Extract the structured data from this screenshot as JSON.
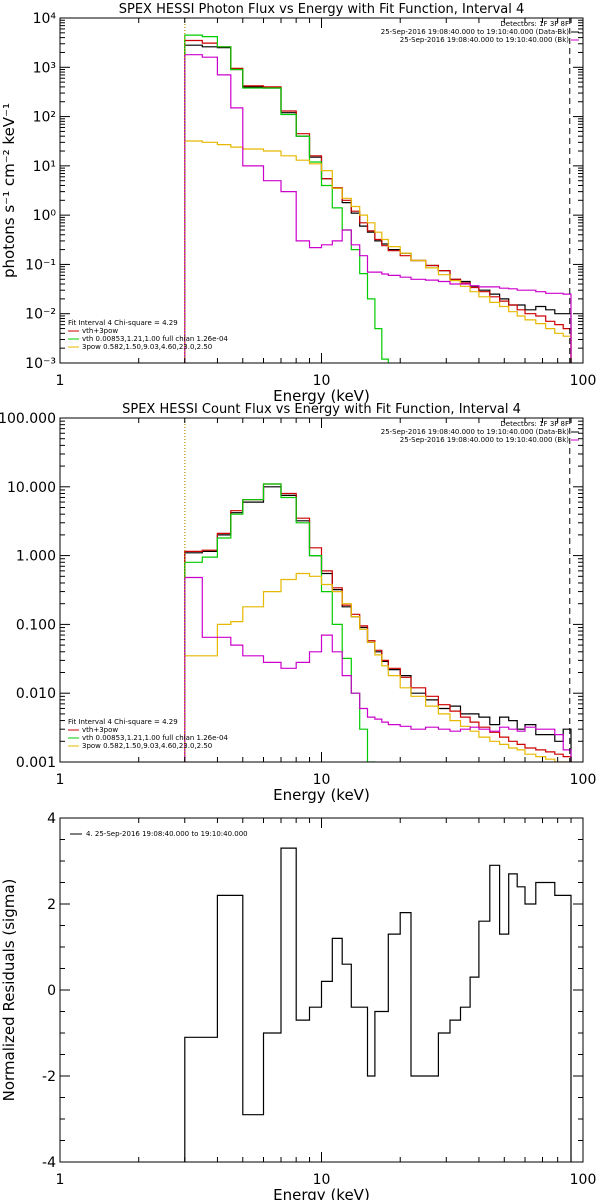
{
  "colors": {
    "data": "#000000",
    "total": "#cc0000",
    "thermal": "#00cc00",
    "nonthermal": "#e6b800",
    "background": "#cc00cc",
    "black": "#000000"
  },
  "chart_data": [
    {
      "id": "photon",
      "type": "line",
      "title": "SPEX HESSI Photon Flux vs Energy with Fit Function, Interval 4",
      "xlabel": "Energy (keV)",
      "ylabel": "photons s⁻¹ cm⁻² keV⁻¹",
      "xscale": "log",
      "yscale": "log",
      "xlim": [
        1,
        100
      ],
      "ylim": [
        0.001,
        10000
      ],
      "xticks": [
        {
          "v": 1,
          "label": "1"
        },
        {
          "v": 10,
          "label": "10"
        },
        {
          "v": 100,
          "label": "100"
        }
      ],
      "yticks": [
        {
          "v": 0.001,
          "label": "10⁻³"
        },
        {
          "v": 0.01,
          "label": "10⁻²"
        },
        {
          "v": 0.1,
          "label": "10⁻¹"
        },
        {
          "v": 1,
          "label": "10⁰"
        },
        {
          "v": 10,
          "label": "10¹"
        },
        {
          "v": 100,
          "label": "10²"
        },
        {
          "v": 1000,
          "label": "10³"
        },
        {
          "v": 10000,
          "label": "10⁴"
        }
      ],
      "vlines": [
        {
          "x": 3,
          "style": "dotted",
          "color": "#000000"
        },
        {
          "x": 3,
          "style": "dotted",
          "color": "#e6b800"
        },
        {
          "x": 89,
          "style": "dashed",
          "color": "#000000"
        }
      ],
      "legend_topright": [
        "Detectors: 1F 3F 8F",
        "25-Sep-2016 19:08:40.000 to 19:10:40.000 (Data-Bk)",
        "25-Sep-2016 19:08:40.000 to 19:10:40.000 (Bk)"
      ],
      "legend_bottomleft": [
        "Fit Interval 4   Chi-square = 4.29",
        "vth+3pow",
        "vth 0.00853,1.21,1.00  full chian 1.26e-04",
        "3pow 0.582,1.50,9.03,4.60,23.0,2.50"
      ],
      "series": [
        {
          "name": "Data-Bk",
          "color": "#000000",
          "edges": [
            3,
            3.5,
            4,
            4.5,
            5,
            6,
            7,
            8,
            9,
            10,
            11,
            12,
            13,
            14,
            15,
            16,
            17,
            18,
            20,
            22,
            25,
            28,
            31,
            34,
            37,
            40,
            44,
            48,
            52,
            56,
            60,
            66,
            72,
            78,
            84,
            90
          ],
          "values": [
            2800,
            2600,
            2500,
            900,
            400,
            380,
            120,
            40,
            15,
            5.5,
            3.5,
            1.8,
            1.1,
            0.6,
            0.45,
            0.3,
            0.26,
            0.2,
            0.17,
            0.12,
            0.095,
            0.075,
            0.05,
            0.045,
            0.035,
            0.03,
            0.025,
            0.02,
            0.015,
            0.015,
            0.012,
            0.014,
            0.012,
            0.01,
            0.01
          ]
        },
        {
          "name": "vth+3pow",
          "color": "#cc0000",
          "edges": [
            3,
            3.5,
            4,
            4.5,
            5,
            6,
            7,
            8,
            9,
            10,
            11,
            12,
            13,
            14,
            15,
            16,
            17,
            18,
            20,
            22,
            25,
            28,
            31,
            34,
            37,
            40,
            44,
            48,
            52,
            56,
            60,
            66,
            72,
            78,
            84,
            90
          ],
          "values": [
            3500,
            3100,
            2600,
            950,
            420,
            400,
            130,
            45,
            16,
            5.5,
            3.6,
            2.0,
            1.2,
            0.7,
            0.48,
            0.32,
            0.24,
            0.19,
            0.15,
            0.12,
            0.095,
            0.075,
            0.05,
            0.042,
            0.034,
            0.028,
            0.022,
            0.018,
            0.015,
            0.012,
            0.01,
            0.009,
            0.007,
            0.006,
            0.005
          ]
        },
        {
          "name": "vth",
          "color": "#00cc00",
          "edges": [
            3,
            3.5,
            4,
            4.5,
            5,
            6,
            7,
            8,
            9,
            10,
            11,
            12,
            13,
            14,
            15,
            16,
            17,
            18
          ],
          "values": [
            4500,
            4200,
            2600,
            900,
            380,
            380,
            110,
            40,
            12,
            4,
            1.4,
            0.5,
            0.2,
            0.065,
            0.02,
            0.005,
            0.0012
          ]
        },
        {
          "name": "3pow",
          "color": "#e6b800",
          "edges": [
            3,
            3.5,
            4,
            4.5,
            5,
            6,
            7,
            8,
            9,
            10,
            11,
            12,
            13,
            14,
            15,
            16,
            17,
            18,
            20,
            22,
            25,
            28,
            31,
            34,
            37,
            40,
            44,
            48,
            52,
            56,
            60,
            66,
            72,
            78,
            84,
            90
          ],
          "values": [
            32,
            30,
            27,
            24,
            22,
            20,
            16,
            13,
            11,
            8,
            3.5,
            2.2,
            1.5,
            1.0,
            0.7,
            0.45,
            0.32,
            0.23,
            0.17,
            0.12,
            0.085,
            0.062,
            0.047,
            0.036,
            0.028,
            0.022,
            0.017,
            0.014,
            0.011,
            0.009,
            0.0075,
            0.0063,
            0.005,
            0.004,
            0.0035
          ]
        },
        {
          "name": "Bk",
          "color": "#cc00cc",
          "edges": [
            3,
            3.5,
            4,
            4.5,
            5,
            6,
            7,
            8,
            9,
            10,
            11,
            12,
            13,
            14,
            15,
            16,
            17,
            18,
            20,
            22,
            25,
            28,
            31,
            34,
            37,
            40,
            44,
            48,
            52,
            56,
            60,
            66,
            72,
            78,
            84,
            90
          ],
          "values": [
            1800,
            1600,
            700,
            150,
            10,
            5.0,
            3,
            0.3,
            0.22,
            0.25,
            0.3,
            0.5,
            0.25,
            0.15,
            0.07,
            0.07,
            0.064,
            0.06,
            0.055,
            0.05,
            0.048,
            0.045,
            0.04,
            0.04,
            0.037,
            0.035,
            0.035,
            0.033,
            0.032,
            0.03,
            0.03,
            0.028,
            0.026,
            0.026,
            0.025
          ]
        }
      ]
    },
    {
      "id": "count",
      "type": "line",
      "title": "SPEX HESSI Count Flux vs Energy with Fit Function, Interval 4",
      "xlabel": "Energy (keV)",
      "ylabel": "",
      "xscale": "log",
      "yscale": "log",
      "xlim": [
        1,
        100
      ],
      "ylim": [
        0.001,
        100
      ],
      "xticks": [
        {
          "v": 1,
          "label": "1"
        },
        {
          "v": 10,
          "label": "10"
        },
        {
          "v": 100,
          "label": "100"
        }
      ],
      "yticks": [
        {
          "v": 0.001,
          "label": "0.001"
        },
        {
          "v": 0.01,
          "label": "0.010"
        },
        {
          "v": 0.1,
          "label": "0.100"
        },
        {
          "v": 1,
          "label": "1.000"
        },
        {
          "v": 10,
          "label": "10.000"
        },
        {
          "v": 100,
          "label": "100.000"
        }
      ],
      "vlines": [
        {
          "x": 3,
          "style": "dotted",
          "color": "#000000"
        },
        {
          "x": 3,
          "style": "dotted",
          "color": "#e6b800"
        },
        {
          "x": 89,
          "style": "dashed",
          "color": "#000000"
        }
      ],
      "legend_topright": [
        "Detectors: 1F 3F 8F",
        "25-Sep-2016 19:08:40.000 to 19:10:40.000 (Data-Bk)",
        "25-Sep-2016 19:08:40.000 to 19:10:40.000 (Bk)"
      ],
      "legend_bottomleft": [
        "Fit Interval 4   Chi-square = 4.29",
        "vth+3pow",
        "vth 0.00853,1.21,1.00  full chian 1.26e-04",
        "3pow 0.582,1.50,9.03,4.60,23.0,2.50"
      ],
      "series": [
        {
          "name": "Data-Bk",
          "color": "#000000",
          "edges": [
            3,
            3.5,
            4,
            4.5,
            5,
            6,
            7,
            8,
            9,
            10,
            11,
            12,
            13,
            14,
            15,
            16,
            17,
            18,
            20,
            22,
            25,
            28,
            31,
            34,
            37,
            40,
            44,
            48,
            52,
            56,
            60,
            66,
            72,
            78,
            84,
            90
          ],
          "values": [
            1.1,
            1.15,
            2.0,
            4.2,
            6.0,
            10.0,
            7.5,
            3.2,
            1.0,
            0.55,
            0.32,
            0.18,
            0.13,
            0.09,
            0.055,
            0.04,
            0.029,
            0.022,
            0.018,
            0.01,
            0.008,
            0.006,
            0.0065,
            0.005,
            0.005,
            0.0045,
            0.0035,
            0.0045,
            0.004,
            0.003,
            0.0035,
            0.0025,
            0.0025,
            0.002,
            0.003
          ]
        },
        {
          "name": "vth+3pow",
          "color": "#cc0000",
          "edges": [
            3,
            3.5,
            4,
            4.5,
            5,
            6,
            7,
            8,
            9,
            10,
            11,
            12,
            13,
            14,
            15,
            16,
            17,
            18,
            20,
            22,
            25,
            28,
            31,
            34,
            37,
            40,
            44,
            48,
            52,
            56,
            60,
            66,
            72,
            78,
            84,
            90
          ],
          "values": [
            1.15,
            1.2,
            2.1,
            4.5,
            6.5,
            11.0,
            8.0,
            3.5,
            1.3,
            0.6,
            0.34,
            0.19,
            0.14,
            0.095,
            0.058,
            0.042,
            0.03,
            0.023,
            0.017,
            0.012,
            0.009,
            0.0068,
            0.0055,
            0.0045,
            0.0038,
            0.0032,
            0.0027,
            0.0023,
            0.002,
            0.0018,
            0.0016,
            0.0015,
            0.0014,
            0.0013,
            0.0012
          ]
        },
        {
          "name": "vth",
          "color": "#00cc00",
          "edges": [
            3,
            3.5,
            4,
            4.5,
            5,
            6,
            7,
            8,
            9,
            10,
            11,
            12,
            13,
            14,
            15,
            16
          ],
          "values": [
            0.8,
            0.95,
            1.8,
            4.0,
            6.5,
            11.0,
            7.0,
            3.0,
            1.0,
            0.3,
            0.1,
            0.032,
            0.01,
            0.003,
            0.001
          ]
        },
        {
          "name": "3pow",
          "color": "#e6b800",
          "edges": [
            3,
            3.5,
            4,
            4.5,
            5,
            6,
            7,
            8,
            9,
            10,
            11,
            12,
            13,
            14,
            15,
            16,
            17,
            18,
            20,
            22,
            25,
            28,
            31,
            34,
            37,
            40,
            44,
            48,
            52,
            56,
            60,
            66,
            72,
            78,
            84,
            90
          ],
          "values": [
            0.035,
            0.035,
            0.1,
            0.11,
            0.18,
            0.3,
            0.45,
            0.55,
            0.5,
            0.38,
            0.3,
            0.2,
            0.13,
            0.085,
            0.055,
            0.036,
            0.025,
            0.018,
            0.012,
            0.009,
            0.0065,
            0.005,
            0.004,
            0.0033,
            0.0028,
            0.0023,
            0.002,
            0.0018,
            0.0016,
            0.0015,
            0.0013,
            0.0012,
            0.0011,
            0.001,
            0.0009
          ]
        },
        {
          "name": "Bk",
          "color": "#cc00cc",
          "edges": [
            3,
            3.5,
            4,
            4.5,
            5,
            6,
            7,
            8,
            9,
            10,
            11,
            12,
            13,
            14,
            15,
            16,
            17,
            18,
            20,
            22,
            25,
            28,
            31,
            34,
            37,
            40,
            44,
            48,
            52,
            56,
            60,
            66,
            72,
            78,
            84,
            90
          ],
          "values": [
            0.48,
            0.065,
            0.065,
            0.05,
            0.035,
            0.028,
            0.023,
            0.028,
            0.04,
            0.07,
            0.04,
            0.018,
            0.01,
            0.006,
            0.0045,
            0.0042,
            0.0038,
            0.0035,
            0.0033,
            0.003,
            0.0032,
            0.003,
            0.0028,
            0.003,
            0.0032,
            0.003,
            0.0028,
            0.0032,
            0.003,
            0.0028,
            0.0032,
            0.003,
            0.003,
            0.0025,
            0.0015
          ]
        }
      ]
    },
    {
      "id": "resid",
      "type": "line",
      "title": "",
      "xlabel": "Energy (keV)",
      "ylabel": "Normalized Residuals (sigma)",
      "xscale": "log",
      "yscale": "linear",
      "xlim": [
        1,
        100
      ],
      "ylim": [
        -4,
        4
      ],
      "xticks": [
        {
          "v": 1,
          "label": "1"
        },
        {
          "v": 10,
          "label": "10"
        },
        {
          "v": 100,
          "label": "100"
        }
      ],
      "yticks": [
        {
          "v": -4,
          "label": "-4"
        },
        {
          "v": -2,
          "label": "-2"
        },
        {
          "v": 0,
          "label": "0"
        },
        {
          "v": 2,
          "label": "2"
        },
        {
          "v": 4,
          "label": "4"
        }
      ],
      "vlines": [],
      "legend_topleft": [
        "4. 25-Sep-2016 19:08:40.000 to 19:10:40.000"
      ],
      "series": [
        {
          "name": "4. 25-Sep-2016 19:08:40.000 to 19:10:40.000",
          "color": "#000000",
          "edges": [
            3,
            3.5,
            4,
            4.5,
            5,
            6,
            7,
            8,
            9,
            10,
            11,
            12,
            13,
            14,
            15,
            16,
            17,
            18,
            20,
            22,
            25,
            28,
            31,
            34,
            37,
            40,
            44,
            48,
            52,
            56,
            60,
            66,
            72,
            78,
            84,
            90
          ],
          "values": [
            -1.1,
            -1.1,
            2.2,
            2.2,
            -2.9,
            -1.0,
            3.3,
            -0.7,
            -0.4,
            0.2,
            1.2,
            0.6,
            -0.4,
            -0.4,
            -2.0,
            -0.5,
            -0.5,
            1.3,
            1.8,
            -2.0,
            -2.0,
            -1.0,
            -0.7,
            -0.4,
            0.3,
            1.6,
            2.9,
            1.3,
            2.7,
            2.4,
            2.0,
            2.5,
            2.5,
            2.2,
            2.2
          ]
        }
      ]
    }
  ]
}
